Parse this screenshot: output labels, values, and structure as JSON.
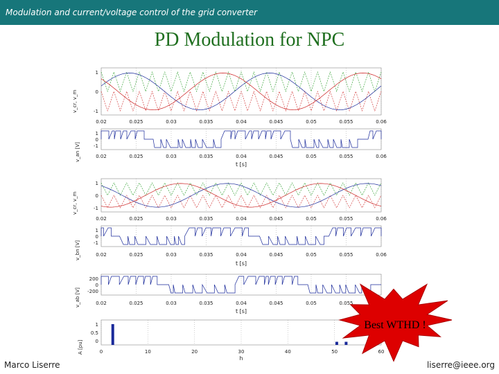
{
  "header": {
    "text": "Modulation and current/voltage control of the grid converter"
  },
  "title": "PD Modulation for NPC",
  "footer": {
    "left": "Marco Liserre",
    "right": "liserre@ieee.org"
  },
  "callout": {
    "text": "Best WTHD !",
    "color": "#dd0000"
  },
  "colors": {
    "header_bg": "#17767a",
    "title": "#1f6f1f",
    "trace_blue": "#1a2a9a",
    "trace_red": "#cc2222",
    "trace_green": "#229922"
  },
  "chart_data": [
    {
      "type": "line",
      "ylabel": "v_cr, v_m",
      "x_ticks": [
        "0.02",
        "0.025",
        "0.03",
        "0.035",
        "0.04",
        "0.045",
        "0.05",
        "0.055",
        "0.06"
      ],
      "y_ticks": [
        "1",
        "0",
        "-1"
      ],
      "xlim": [
        0.02,
        0.06
      ],
      "ylim": [
        -1.2,
        1.2
      ]
    },
    {
      "type": "line",
      "ylabel": "v_an [V]",
      "xlabel": "t [s]",
      "x_ticks": [
        "0.02",
        "0.025",
        "0.03",
        "0.035",
        "0.04",
        "0.045",
        "0.05",
        "0.055",
        "0.06"
      ],
      "y_ticks": [
        "1",
        "0",
        "-1"
      ],
      "xlim": [
        0.02,
        0.06
      ]
    },
    {
      "type": "line",
      "ylabel": "v_cr, v_m",
      "x_ticks": [
        "0.02",
        "0.025",
        "0.03",
        "0.035",
        "0.04",
        "0.045",
        "0.05",
        "0.055",
        "0.06"
      ],
      "y_ticks": [
        "1",
        "0",
        "-1"
      ],
      "xlim": [
        0.02,
        0.06
      ],
      "ylim": [
        -1.2,
        1.2
      ]
    },
    {
      "type": "line",
      "ylabel": "v_bn [V]",
      "xlabel": "t [s]",
      "x_ticks": [
        "0.02",
        "0.025",
        "0.03",
        "0.035",
        "0.04",
        "0.045",
        "0.05",
        "0.055",
        "0.06"
      ],
      "y_ticks": [
        "1",
        "0",
        "-1"
      ],
      "xlim": [
        0.02,
        0.06
      ]
    },
    {
      "type": "line",
      "ylabel": "v_ab [V]",
      "xlabel": "t [s]",
      "x_ticks": [
        "0.02",
        "0.025",
        "0.03",
        "0.035",
        "0.04",
        "0.045",
        "0.05",
        "0.055",
        "0.06"
      ],
      "y_ticks": [
        "200",
        "0",
        "-200"
      ],
      "xlim": [
        0.02,
        0.06
      ],
      "ylim": [
        -250,
        250
      ]
    },
    {
      "type": "bar",
      "ylabel": "A [pu]",
      "xlabel": "h",
      "x_ticks": [
        "0",
        "10",
        "20",
        "30",
        "40",
        "50",
        "60"
      ],
      "y_ticks": [
        "1",
        "0.5",
        "0"
      ],
      "xlim": [
        0,
        60
      ],
      "ylim": [
        0,
        1
      ],
      "x": [
        1,
        49,
        51
      ],
      "values": [
        1.0,
        0.15,
        0.15
      ]
    }
  ]
}
